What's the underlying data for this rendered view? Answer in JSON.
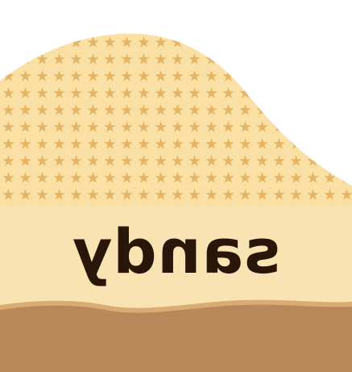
{
  "scene": {
    "word": "sandy",
    "word_mirrored": true,
    "colors": {
      "background": "#ffffff",
      "hill_fill": "#fbe0a6",
      "band_fill": "#fae3b2",
      "star_color": "#e2ad58",
      "ground_light": "#d6a66a",
      "ground_dark": "#b8875a",
      "text": "#2a1608"
    },
    "icons": [
      "star-pattern-icon"
    ]
  }
}
